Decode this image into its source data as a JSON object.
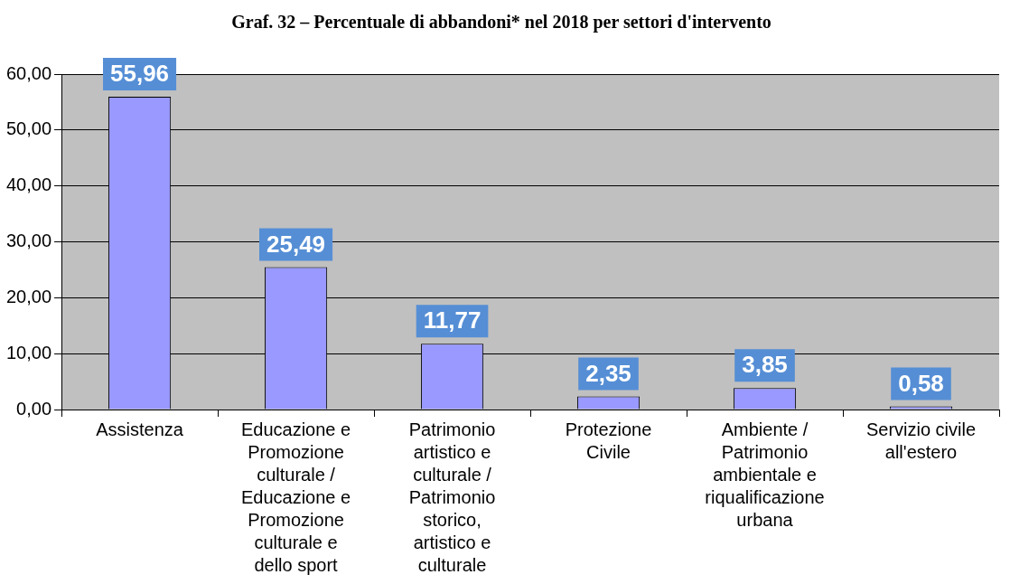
{
  "chart_data": {
    "type": "bar",
    "title": "Graf. 32 – Percentuale di abbandoni* nel 2018 per settori d'intervento",
    "categories": [
      "Assistenza",
      "Educazione e Promozione culturale / Educazione e Promozione culturale e dello sport",
      "Patrimonio artistico e culturale / Patrimonio storico, artistico e culturale",
      "Protezione Civile",
      "Ambiente / Patrimonio ambientale e riqualificazione urbana",
      "Servizio civile all'estero"
    ],
    "values": [
      55.96,
      25.49,
      11.77,
      2.35,
      3.85,
      0.58
    ],
    "color": "#9999ff",
    "ylim": [
      0,
      60
    ],
    "yticks": [
      {
        "value": 0,
        "label": "0,00"
      },
      {
        "value": 10,
        "label": "10,00"
      },
      {
        "value": 20,
        "label": "20,00"
      },
      {
        "value": 30,
        "label": "30,00"
      },
      {
        "value": 40,
        "label": "40,00"
      },
      {
        "value": 50,
        "label": "50,00"
      },
      {
        "value": 60,
        "label": "60,00"
      }
    ],
    "value_labels": [
      "55,96",
      "25,49",
      "11,77",
      "2,35",
      "3,85",
      "0,58"
    ],
    "grid": "y",
    "legend": false
  }
}
